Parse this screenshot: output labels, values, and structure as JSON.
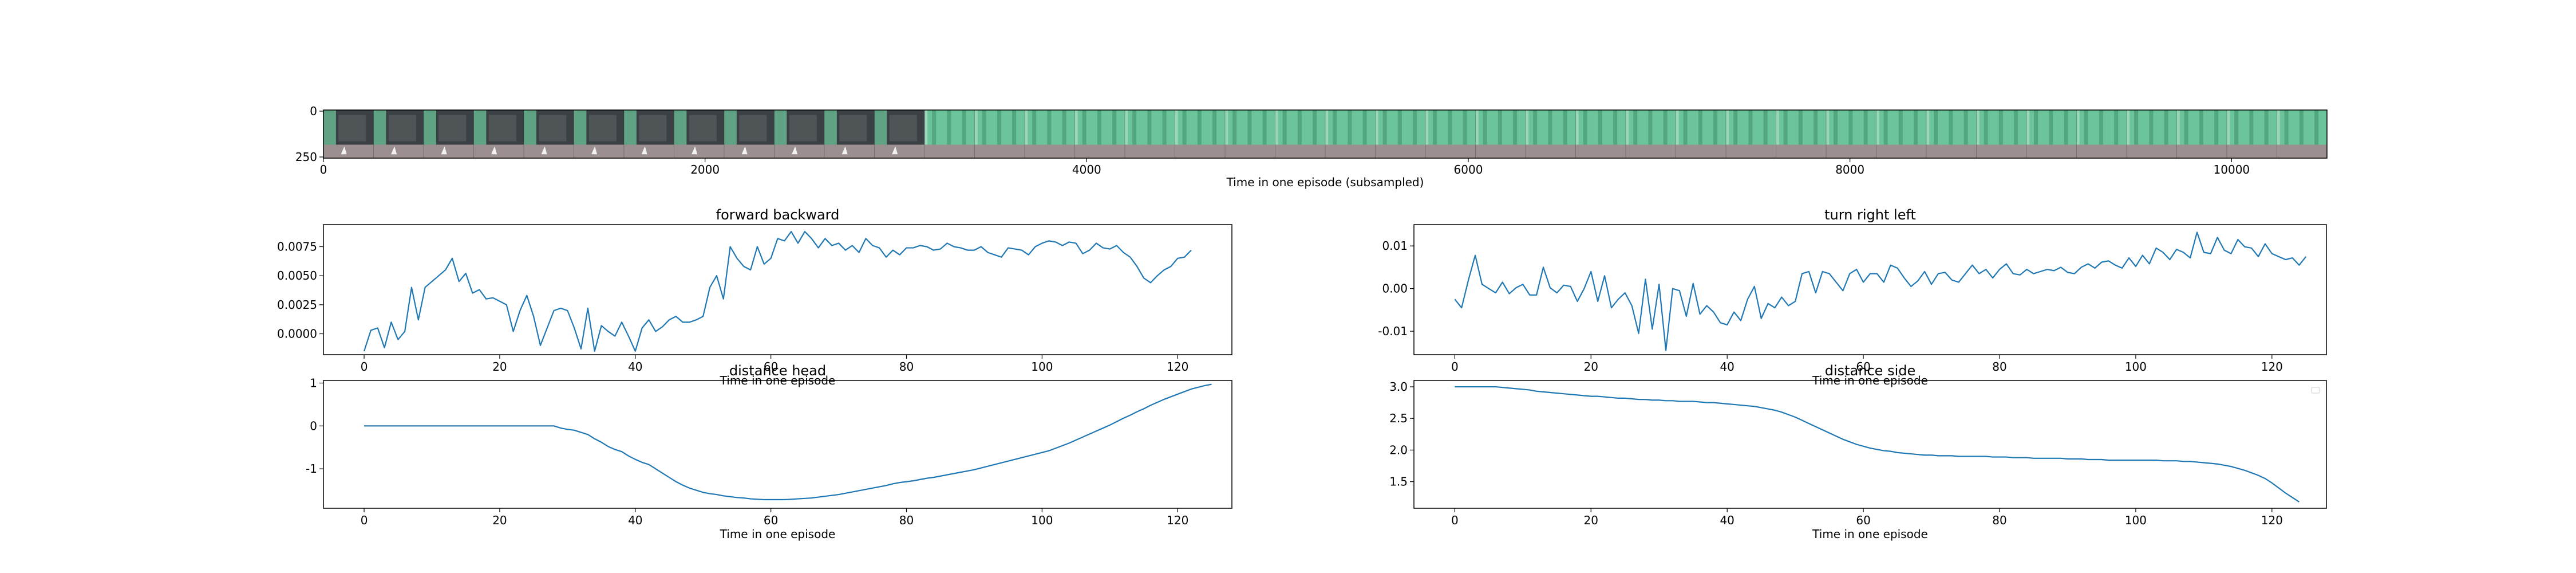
{
  "filmstrip": {
    "xlabel": "Time in one episode (subsampled)",
    "x_ticks": [
      "0",
      "2000",
      "4000",
      "6000",
      "8000",
      "10000"
    ],
    "y_ticks": [
      "0",
      "250"
    ],
    "xlim": [
      0,
      10500
    ],
    "colors": {
      "wall_dark": "#3a4044",
      "curtain": "#6cc49a",
      "floor": "#9c8f90"
    }
  },
  "chart_data": [
    {
      "type": "line",
      "title": "forward backward",
      "xlabel": "Time in one episode",
      "ylabel": "",
      "xlim": [
        -6,
        128
      ],
      "ylim": [
        -0.0018,
        0.0094
      ],
      "x_ticks": [
        "0",
        "20",
        "40",
        "60",
        "80",
        "100",
        "120"
      ],
      "y_ticks": [
        "0.0000",
        "0.0025",
        "0.0050",
        "0.0075"
      ],
      "color": "#1f77b4",
      "legend": "none",
      "series": [
        {
          "name": "",
          "values": [
            -0.0015,
            0.0003,
            0.0005,
            -0.0012,
            0.001,
            -0.0005,
            0.0002,
            0.004,
            0.0012,
            0.004,
            0.0045,
            0.005,
            0.0055,
            0.0065,
            0.0045,
            0.0052,
            0.0035,
            0.0038,
            0.003,
            0.0031,
            0.0028,
            0.0025,
            0.0002,
            0.002,
            0.0033,
            0.0015,
            -0.001,
            0.0005,
            0.002,
            0.0022,
            0.002,
            0.0005,
            -0.0013,
            0.0022,
            -0.0015,
            0.0007,
            0.0002,
            -0.0002,
            0.001,
            -0.0002,
            -0.0015,
            0.0005,
            0.0012,
            0.0002,
            0.0006,
            0.0012,
            0.0015,
            0.001,
            0.001,
            0.0012,
            0.0015,
            0.004,
            0.005,
            0.003,
            0.0075,
            0.0065,
            0.0058,
            0.0055,
            0.0075,
            0.006,
            0.0065,
            0.0082,
            0.008,
            0.0088,
            0.0078,
            0.0088,
            0.0082,
            0.0074,
            0.0082,
            0.0076,
            0.0078,
            0.0072,
            0.0076,
            0.007,
            0.0082,
            0.0076,
            0.0074,
            0.0066,
            0.0072,
            0.0068,
            0.0074,
            0.0074,
            0.0076,
            0.0075,
            0.0072,
            0.0073,
            0.0078,
            0.0075,
            0.0074,
            0.0072,
            0.0072,
            0.0075,
            0.007,
            0.0068,
            0.0066,
            0.0074,
            0.0073,
            0.0072,
            0.0068,
            0.0075,
            0.0078,
            0.008,
            0.0079,
            0.0076,
            0.0079,
            0.0078,
            0.0069,
            0.0072,
            0.0078,
            0.0074,
            0.0073,
            0.0076,
            0.007,
            0.0066,
            0.0058,
            0.0048,
            0.0044,
            0.005,
            0.0055,
            0.0058,
            0.0065,
            0.0066,
            0.0072
          ]
        }
      ]
    },
    {
      "type": "line",
      "title": "turn right left",
      "xlabel": "Time in one episode",
      "ylabel": "",
      "xlim": [
        -6,
        128
      ],
      "ylim": [
        -0.0155,
        0.015
      ],
      "x_ticks": [
        "0",
        "20",
        "40",
        "60",
        "80",
        "100",
        "120"
      ],
      "y_ticks": [
        "-0.01",
        "0.00",
        "0.01"
      ],
      "color": "#1f77b4",
      "legend": "none",
      "series": [
        {
          "name": "",
          "values": [
            -0.0025,
            -0.0045,
            0.002,
            0.0078,
            0.001,
            0.0,
            -0.001,
            0.0015,
            -0.0012,
            0.0002,
            0.001,
            -0.0015,
            -0.0015,
            0.005,
            0.0002,
            -0.001,
            0.0008,
            0.0005,
            -0.003,
            0.0,
            0.004,
            -0.003,
            0.003,
            -0.0045,
            -0.0025,
            -0.001,
            -0.004,
            -0.0105,
            0.0022,
            -0.0095,
            0.001,
            -0.0145,
            0.0,
            -0.0005,
            -0.0065,
            0.0012,
            -0.006,
            -0.004,
            -0.0055,
            -0.008,
            -0.0085,
            -0.0055,
            -0.0075,
            -0.0025,
            0.0005,
            -0.007,
            -0.0035,
            -0.0045,
            -0.002,
            -0.004,
            -0.003,
            0.0035,
            0.004,
            -0.001,
            0.004,
            0.0035,
            0.0015,
            -0.0005,
            0.0035,
            0.0045,
            0.0015,
            0.0035,
            0.0035,
            0.0015,
            0.0055,
            0.0048,
            0.0025,
            0.0005,
            0.0018,
            0.004,
            0.001,
            0.0035,
            0.0038,
            0.002,
            0.0015,
            0.0035,
            0.0055,
            0.0035,
            0.0045,
            0.0025,
            0.0045,
            0.0058,
            0.0035,
            0.0032,
            0.0045,
            0.0035,
            0.004,
            0.0045,
            0.0042,
            0.005,
            0.0038,
            0.0035,
            0.005,
            0.0058,
            0.0048,
            0.0062,
            0.0065,
            0.0055,
            0.0048,
            0.0072,
            0.0052,
            0.0078,
            0.0058,
            0.0095,
            0.0085,
            0.0068,
            0.0092,
            0.0085,
            0.0072,
            0.0132,
            0.0085,
            0.0082,
            0.012,
            0.009,
            0.0082,
            0.0115,
            0.0098,
            0.0095,
            0.0075,
            0.0105,
            0.0082,
            0.0075,
            0.0068,
            0.0072,
            0.0055,
            0.0075
          ]
        }
      ]
    },
    {
      "type": "line",
      "title": "distance head",
      "xlabel": "Time in one episode",
      "ylabel": "",
      "xlim": [
        -6,
        128
      ],
      "ylim": [
        -1.92,
        1.06
      ],
      "x_ticks": [
        "0",
        "20",
        "40",
        "60",
        "80",
        "100",
        "120"
      ],
      "y_ticks": [
        "-1",
        "0",
        "1"
      ],
      "color": "#1f77b4",
      "legend": "none",
      "series": [
        {
          "name": "",
          "values": [
            0,
            0,
            0,
            0,
            0,
            0,
            0,
            0,
            0,
            0,
            0,
            0,
            0,
            0,
            0,
            0,
            0,
            0,
            0,
            0,
            0,
            0,
            0,
            0,
            0,
            0,
            0,
            0,
            0,
            -0.05,
            -0.08,
            -0.1,
            -0.15,
            -0.2,
            -0.3,
            -0.38,
            -0.48,
            -0.55,
            -0.6,
            -0.7,
            -0.78,
            -0.85,
            -0.9,
            -1.0,
            -1.1,
            -1.2,
            -1.3,
            -1.38,
            -1.45,
            -1.5,
            -1.55,
            -1.58,
            -1.6,
            -1.63,
            -1.65,
            -1.67,
            -1.68,
            -1.7,
            -1.71,
            -1.72,
            -1.72,
            -1.72,
            -1.72,
            -1.71,
            -1.7,
            -1.69,
            -1.68,
            -1.66,
            -1.64,
            -1.62,
            -1.6,
            -1.57,
            -1.54,
            -1.51,
            -1.48,
            -1.45,
            -1.42,
            -1.39,
            -1.35,
            -1.32,
            -1.3,
            -1.28,
            -1.25,
            -1.22,
            -1.2,
            -1.17,
            -1.14,
            -1.11,
            -1.08,
            -1.05,
            -1.02,
            -0.98,
            -0.94,
            -0.9,
            -0.86,
            -0.82,
            -0.78,
            -0.74,
            -0.7,
            -0.66,
            -0.62,
            -0.58,
            -0.52,
            -0.46,
            -0.4,
            -0.33,
            -0.26,
            -0.19,
            -0.12,
            -0.05,
            0.02,
            0.1,
            0.18,
            0.25,
            0.33,
            0.4,
            0.48,
            0.55,
            0.62,
            0.68,
            0.74,
            0.8,
            0.86,
            0.9,
            0.94,
            0.97
          ]
        }
      ]
    },
    {
      "type": "line",
      "title": "distance side",
      "xlabel": "Time in one episode",
      "ylabel": "",
      "xlim": [
        -6,
        128
      ],
      "ylim": [
        1.08,
        3.1
      ],
      "x_ticks": [
        "0",
        "20",
        "40",
        "60",
        "80",
        "100",
        "120"
      ],
      "y_ticks": [
        "1.5",
        "2.0",
        "2.5",
        "3.0"
      ],
      "color": "#1f77b4",
      "legend": "top-right",
      "series": [
        {
          "name": "",
          "values": [
            3.0,
            3.0,
            3.0,
            3.0,
            3.0,
            3.0,
            3.0,
            2.99,
            2.98,
            2.97,
            2.96,
            2.95,
            2.93,
            2.92,
            2.91,
            2.9,
            2.89,
            2.88,
            2.87,
            2.86,
            2.85,
            2.85,
            2.84,
            2.83,
            2.82,
            2.82,
            2.81,
            2.8,
            2.8,
            2.79,
            2.79,
            2.78,
            2.78,
            2.77,
            2.77,
            2.77,
            2.76,
            2.75,
            2.75,
            2.74,
            2.73,
            2.72,
            2.71,
            2.7,
            2.69,
            2.67,
            2.65,
            2.63,
            2.6,
            2.56,
            2.52,
            2.47,
            2.42,
            2.37,
            2.32,
            2.27,
            2.22,
            2.17,
            2.13,
            2.09,
            2.06,
            2.03,
            2.01,
            1.99,
            1.98,
            1.96,
            1.95,
            1.94,
            1.93,
            1.92,
            1.92,
            1.91,
            1.91,
            1.91,
            1.9,
            1.9,
            1.9,
            1.9,
            1.9,
            1.89,
            1.89,
            1.89,
            1.88,
            1.88,
            1.88,
            1.87,
            1.87,
            1.87,
            1.87,
            1.87,
            1.86,
            1.86,
            1.86,
            1.85,
            1.85,
            1.85,
            1.84,
            1.84,
            1.84,
            1.84,
            1.84,
            1.84,
            1.84,
            1.84,
            1.83,
            1.83,
            1.83,
            1.82,
            1.82,
            1.81,
            1.8,
            1.79,
            1.78,
            1.76,
            1.74,
            1.71,
            1.68,
            1.64,
            1.6,
            1.55,
            1.48,
            1.4,
            1.32,
            1.25,
            1.18
          ]
        }
      ]
    }
  ]
}
